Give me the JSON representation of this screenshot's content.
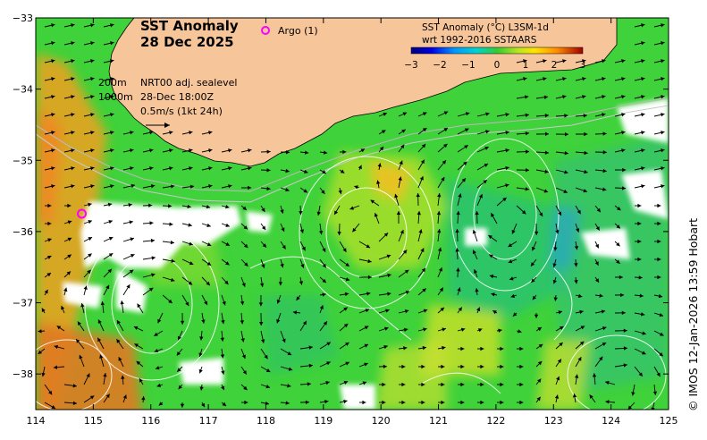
{
  "map": {
    "title": "SST Anomaly",
    "date": "28 Dec 2025",
    "argo_label": "Argo (1)",
    "legend": {
      "line1_depth": "200m",
      "line1_text": "NRT00 adj. sealevel",
      "line2_depth": "1000m",
      "line2_text": "28-Dec 18:00Z",
      "line3_text": "0.5m/s (1kt 24h)"
    },
    "colorbar": {
      "title1": "SST Anomaly (°C) L3SM-1d",
      "title2": "wrt 1992-2016 SSTAARS",
      "ticks": [
        "−3",
        "−2",
        "−1",
        "0",
        "1",
        "2",
        "3"
      ],
      "range": [
        -3,
        3
      ]
    },
    "credit": "© IMOS 12-Jan-2026 13:59 Hobart",
    "x_ticks": [
      "114",
      "115",
      "116",
      "117",
      "118",
      "119",
      "120",
      "121",
      "122",
      "123",
      "124",
      "125"
    ],
    "y_ticks": [
      "−33",
      "−34",
      "−35",
      "−36",
      "−37",
      "−38"
    ],
    "argo_float": {
      "lon": 114.8,
      "lat": -35.75
    },
    "colors": {
      "land": "#f7c59a",
      "ocean_base": "#3fd23a",
      "argo": "#ff00ff",
      "no_data": "#ffffff"
    }
  }
}
